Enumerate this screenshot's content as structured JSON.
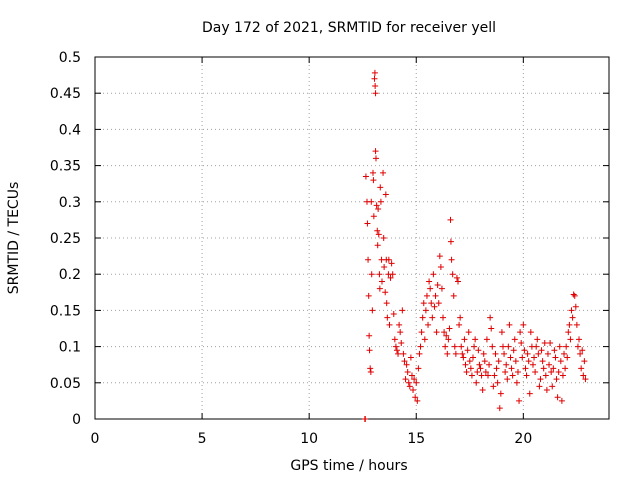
{
  "chart_data": {
    "type": "scatter",
    "title": "Day 172 of 2021, SRMTID for receiver yell",
    "xlabel": "GPS time / hours",
    "ylabel": "SRMTID / TECUs",
    "xlim": [
      0,
      24
    ],
    "ylim": [
      0,
      0.5
    ],
    "xticks": [
      0,
      5,
      10,
      15,
      20
    ],
    "xtick_labels": [
      "0",
      "5",
      "10",
      "15",
      "20"
    ],
    "yticks": [
      0,
      0.05,
      0.1,
      0.15,
      0.2,
      0.25,
      0.3,
      0.35,
      0.4,
      0.45,
      0.5
    ],
    "ytick_labels": [
      "0",
      "0.05",
      "0.1",
      "0.15",
      "0.2",
      "0.25",
      "0.3",
      "0.35",
      "0.4",
      "0.45",
      "0.5"
    ],
    "grid": true,
    "marker": "+",
    "color": "#e00000",
    "series": [
      {
        "name": "SRMTID",
        "points": [
          [
            12.6,
            0.0
          ],
          [
            12.62,
            0.0
          ],
          [
            12.65,
            0.335
          ],
          [
            12.7,
            0.3
          ],
          [
            12.72,
            0.27
          ],
          [
            12.75,
            0.22
          ],
          [
            12.78,
            0.17
          ],
          [
            12.8,
            0.115
          ],
          [
            12.82,
            0.095
          ],
          [
            12.85,
            0.07
          ],
          [
            12.88,
            0.065
          ],
          [
            12.9,
            0.3
          ],
          [
            12.92,
            0.2
          ],
          [
            12.95,
            0.15
          ],
          [
            12.98,
            0.34
          ],
          [
            13.0,
            0.33
          ],
          [
            13.02,
            0.28
          ],
          [
            13.05,
            0.47
          ],
          [
            13.07,
            0.478
          ],
          [
            13.08,
            0.46
          ],
          [
            13.1,
            0.45
          ],
          [
            13.1,
            0.37
          ],
          [
            13.12,
            0.36
          ],
          [
            13.15,
            0.295
          ],
          [
            13.18,
            0.26
          ],
          [
            13.2,
            0.24
          ],
          [
            13.22,
            0.29
          ],
          [
            13.25,
            0.255
          ],
          [
            13.28,
            0.2
          ],
          [
            13.3,
            0.18
          ],
          [
            13.32,
            0.32
          ],
          [
            13.35,
            0.3
          ],
          [
            13.38,
            0.22
          ],
          [
            13.4,
            0.19
          ],
          [
            13.45,
            0.34
          ],
          [
            13.48,
            0.25
          ],
          [
            13.5,
            0.21
          ],
          [
            13.55,
            0.175
          ],
          [
            13.58,
            0.31
          ],
          [
            13.6,
            0.22
          ],
          [
            13.62,
            0.16
          ],
          [
            13.65,
            0.14
          ],
          [
            13.7,
            0.2
          ],
          [
            13.72,
            0.22
          ],
          [
            13.75,
            0.13
          ],
          [
            13.8,
            0.195
          ],
          [
            13.85,
            0.215
          ],
          [
            13.9,
            0.2
          ],
          [
            13.95,
            0.145
          ],
          [
            14.0,
            0.11
          ],
          [
            14.05,
            0.1
          ],
          [
            14.1,
            0.095
          ],
          [
            14.15,
            0.09
          ],
          [
            14.2,
            0.13
          ],
          [
            14.25,
            0.12
          ],
          [
            14.3,
            0.105
          ],
          [
            14.35,
            0.15
          ],
          [
            14.4,
            0.09
          ],
          [
            14.45,
            0.08
          ],
          [
            14.5,
            0.055
          ],
          [
            14.55,
            0.075
          ],
          [
            14.6,
            0.065
          ],
          [
            14.65,
            0.05
          ],
          [
            14.7,
            0.045
          ],
          [
            14.75,
            0.085
          ],
          [
            14.8,
            0.06
          ],
          [
            14.85,
            0.04
          ],
          [
            14.9,
            0.055
          ],
          [
            14.95,
            0.03
          ],
          [
            15.0,
            0.05
          ],
          [
            15.05,
            0.025
          ],
          [
            15.1,
            0.07
          ],
          [
            15.15,
            0.09
          ],
          [
            15.2,
            0.1
          ],
          [
            15.25,
            0.12
          ],
          [
            15.3,
            0.14
          ],
          [
            15.35,
            0.16
          ],
          [
            15.4,
            0.11
          ],
          [
            15.45,
            0.15
          ],
          [
            15.5,
            0.17
          ],
          [
            15.55,
            0.13
          ],
          [
            15.6,
            0.19
          ],
          [
            15.65,
            0.18
          ],
          [
            15.7,
            0.16
          ],
          [
            15.75,
            0.14
          ],
          [
            15.8,
            0.2
          ],
          [
            15.85,
            0.155
          ],
          [
            15.9,
            0.17
          ],
          [
            15.95,
            0.12
          ],
          [
            16.0,
            0.185
          ],
          [
            16.05,
            0.16
          ],
          [
            16.1,
            0.225
          ],
          [
            16.15,
            0.21
          ],
          [
            16.2,
            0.18
          ],
          [
            16.25,
            0.14
          ],
          [
            16.3,
            0.12
          ],
          [
            16.35,
            0.1
          ],
          [
            16.4,
            0.115
          ],
          [
            16.45,
            0.09
          ],
          [
            16.5,
            0.11
          ],
          [
            16.55,
            0.125
          ],
          [
            16.6,
            0.275
          ],
          [
            16.62,
            0.245
          ],
          [
            16.65,
            0.22
          ],
          [
            16.7,
            0.2
          ],
          [
            16.75,
            0.17
          ],
          [
            16.8,
            0.1
          ],
          [
            16.85,
            0.09
          ],
          [
            16.9,
            0.195
          ],
          [
            16.95,
            0.19
          ],
          [
            17.0,
            0.13
          ],
          [
            17.05,
            0.14
          ],
          [
            17.1,
            0.1
          ],
          [
            17.15,
            0.09
          ],
          [
            17.2,
            0.085
          ],
          [
            17.25,
            0.11
          ],
          [
            17.3,
            0.075
          ],
          [
            17.35,
            0.065
          ],
          [
            17.4,
            0.095
          ],
          [
            17.45,
            0.12
          ],
          [
            17.5,
            0.08
          ],
          [
            17.55,
            0.07
          ],
          [
            17.6,
            0.06
          ],
          [
            17.65,
            0.085
          ],
          [
            17.7,
            0.1
          ],
          [
            17.75,
            0.11
          ],
          [
            17.8,
            0.05
          ],
          [
            17.85,
            0.065
          ],
          [
            17.9,
            0.095
          ],
          [
            17.95,
            0.075
          ],
          [
            18.0,
            0.07
          ],
          [
            18.05,
            0.06
          ],
          [
            18.1,
            0.04
          ],
          [
            18.15,
            0.09
          ],
          [
            18.2,
            0.08
          ],
          [
            18.25,
            0.065
          ],
          [
            18.3,
            0.11
          ],
          [
            18.35,
            0.06
          ],
          [
            18.4,
            0.075
          ],
          [
            18.45,
            0.14
          ],
          [
            18.5,
            0.125
          ],
          [
            18.55,
            0.1
          ],
          [
            18.6,
            0.045
          ],
          [
            18.65,
            0.06
          ],
          [
            18.7,
            0.09
          ],
          [
            18.75,
            0.07
          ],
          [
            18.8,
            0.05
          ],
          [
            18.85,
            0.08
          ],
          [
            18.9,
            0.015
          ],
          [
            18.95,
            0.035
          ],
          [
            19.0,
            0.12
          ],
          [
            19.05,
            0.1
          ],
          [
            19.1,
            0.09
          ],
          [
            19.15,
            0.065
          ],
          [
            19.2,
            0.075
          ],
          [
            19.25,
            0.055
          ],
          [
            19.3,
            0.1
          ],
          [
            19.35,
            0.13
          ],
          [
            19.4,
            0.085
          ],
          [
            19.45,
            0.07
          ],
          [
            19.5,
            0.06
          ],
          [
            19.55,
            0.095
          ],
          [
            19.6,
            0.11
          ],
          [
            19.65,
            0.08
          ],
          [
            19.7,
            0.05
          ],
          [
            19.75,
            0.065
          ],
          [
            19.8,
            0.025
          ],
          [
            19.85,
            0.12
          ],
          [
            19.9,
            0.105
          ],
          [
            19.95,
            0.085
          ],
          [
            20.0,
            0.13
          ],
          [
            20.05,
            0.095
          ],
          [
            20.1,
            0.07
          ],
          [
            20.15,
            0.06
          ],
          [
            20.2,
            0.09
          ],
          [
            20.25,
            0.08
          ],
          [
            20.3,
            0.035
          ],
          [
            20.35,
            0.12
          ],
          [
            20.4,
            0.1
          ],
          [
            20.45,
            0.075
          ],
          [
            20.5,
            0.085
          ],
          [
            20.55,
            0.065
          ],
          [
            20.6,
            0.1
          ],
          [
            20.65,
            0.11
          ],
          [
            20.7,
            0.09
          ],
          [
            20.75,
            0.045
          ],
          [
            20.8,
            0.055
          ],
          [
            20.85,
            0.095
          ],
          [
            20.9,
            0.08
          ],
          [
            20.95,
            0.07
          ],
          [
            21.0,
            0.105
          ],
          [
            21.05,
            0.06
          ],
          [
            21.1,
            0.04
          ],
          [
            21.15,
            0.09
          ],
          [
            21.2,
            0.075
          ],
          [
            21.25,
            0.105
          ],
          [
            21.3,
            0.065
          ],
          [
            21.35,
            0.045
          ],
          [
            21.4,
            0.07
          ],
          [
            21.45,
            0.095
          ],
          [
            21.5,
            0.085
          ],
          [
            21.55,
            0.055
          ],
          [
            21.6,
            0.03
          ],
          [
            21.65,
            0.065
          ],
          [
            21.7,
            0.1
          ],
          [
            21.75,
            0.08
          ],
          [
            21.8,
            0.025
          ],
          [
            21.85,
            0.06
          ],
          [
            21.9,
            0.09
          ],
          [
            21.95,
            0.07
          ],
          [
            22.0,
            0.1
          ],
          [
            22.05,
            0.085
          ],
          [
            22.1,
            0.12
          ],
          [
            22.15,
            0.13
          ],
          [
            22.2,
            0.11
          ],
          [
            22.25,
            0.15
          ],
          [
            22.3,
            0.14
          ],
          [
            22.35,
            0.172
          ],
          [
            22.4,
            0.17
          ],
          [
            22.45,
            0.155
          ],
          [
            22.5,
            0.13
          ],
          [
            22.55,
            0.1
          ],
          [
            22.6,
            0.11
          ],
          [
            22.65,
            0.09
          ],
          [
            22.7,
            0.07
          ],
          [
            22.75,
            0.095
          ],
          [
            22.8,
            0.06
          ],
          [
            22.85,
            0.08
          ],
          [
            22.9,
            0.055
          ]
        ]
      }
    ]
  }
}
